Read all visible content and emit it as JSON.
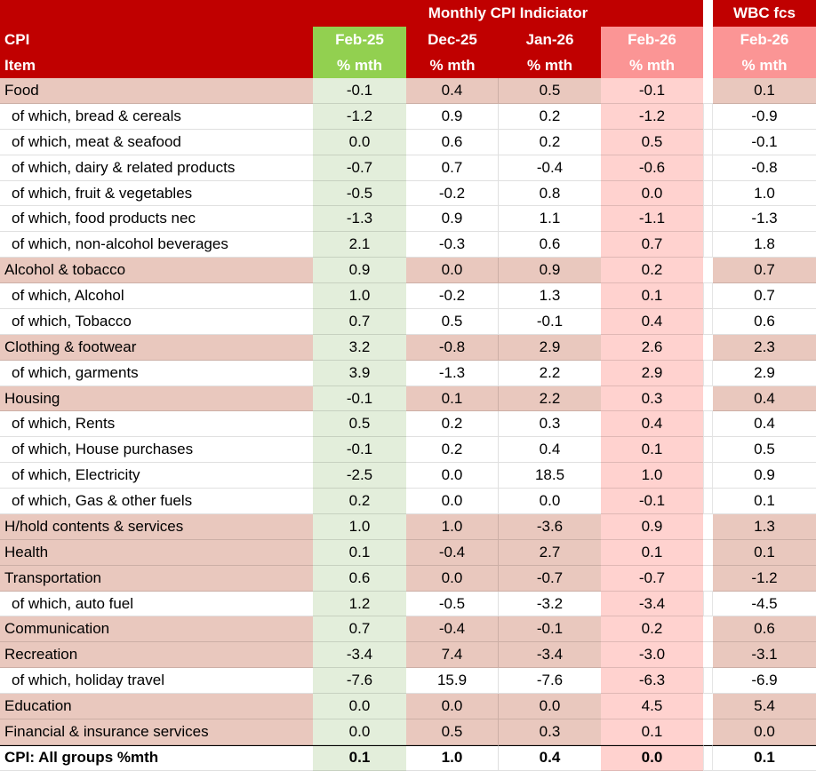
{
  "colors": {
    "header_red": "#C00000",
    "header_green": "#92D050",
    "header_pink": "#FB9595",
    "col_green": "#E3EEDB",
    "col_pink": "#FFD2CF",
    "category_row": "#E9C8BE",
    "grid_line": "#D9D9D9",
    "header_text": "#FFFFFF",
    "text": "#000000"
  },
  "chart_data": {
    "type": "table",
    "title": "Monthly CPI Indiciator",
    "forecast_title": "WBC fcs",
    "row_header": {
      "line1": "CPI",
      "line2": "Item"
    },
    "columns": [
      {
        "label": "Feb-25",
        "sub": "% mth",
        "theme": "green",
        "group": "Monthly CPI Indiciator"
      },
      {
        "label": "Dec-25",
        "sub": "% mth",
        "theme": "red",
        "group": "Monthly CPI Indiciator"
      },
      {
        "label": "Jan-26",
        "sub": "% mth",
        "theme": "red",
        "group": "Monthly CPI Indiciator"
      },
      {
        "label": "Feb-26",
        "sub": "% mth",
        "theme": "pink",
        "group": "Monthly CPI Indiciator"
      },
      {
        "label": "Feb-26",
        "sub": "% mth",
        "theme": "pink",
        "group": "WBC fcs"
      }
    ],
    "rows": [
      {
        "label": "Food",
        "type": "cat",
        "values": [
          -0.1,
          0.4,
          0.5,
          -0.1,
          0.1
        ]
      },
      {
        "label": "of which, bread & cereals",
        "type": "sub",
        "values": [
          -1.2,
          0.9,
          0.2,
          -1.2,
          -0.9
        ]
      },
      {
        "label": "of which, meat & seafood",
        "type": "sub",
        "values": [
          0.0,
          0.6,
          0.2,
          0.5,
          -0.1
        ]
      },
      {
        "label": "of which, dairy & related products",
        "type": "sub",
        "values": [
          -0.7,
          0.7,
          -0.4,
          -0.6,
          -0.8
        ]
      },
      {
        "label": "of which, fruit & vegetables",
        "type": "sub",
        "values": [
          -0.5,
          -0.2,
          0.8,
          0.0,
          1.0
        ]
      },
      {
        "label": "of which, food products nec",
        "type": "sub",
        "values": [
          -1.3,
          0.9,
          1.1,
          -1.1,
          -1.3
        ]
      },
      {
        "label": "of which, non-alcohol beverages",
        "type": "sub",
        "values": [
          2.1,
          -0.3,
          0.6,
          0.7,
          1.8
        ]
      },
      {
        "label": "Alcohol & tobacco",
        "type": "cat",
        "values": [
          0.9,
          0.0,
          0.9,
          0.2,
          0.7
        ]
      },
      {
        "label": "of which, Alcohol",
        "type": "sub",
        "values": [
          1.0,
          -0.2,
          1.3,
          0.1,
          0.7
        ]
      },
      {
        "label": "of which, Tobacco",
        "type": "sub",
        "values": [
          0.7,
          0.5,
          -0.1,
          0.4,
          0.6
        ]
      },
      {
        "label": "Clothing & footwear",
        "type": "cat",
        "values": [
          3.2,
          -0.8,
          2.9,
          2.6,
          2.3
        ]
      },
      {
        "label": "of which, garments",
        "type": "sub",
        "values": [
          3.9,
          -1.3,
          2.2,
          2.9,
          2.9
        ]
      },
      {
        "label": "Housing",
        "type": "cat",
        "values": [
          -0.1,
          0.1,
          2.2,
          0.3,
          0.4
        ]
      },
      {
        "label": "of which, Rents",
        "type": "sub",
        "values": [
          0.5,
          0.2,
          0.3,
          0.4,
          0.4
        ]
      },
      {
        "label": "of which, House purchases",
        "type": "sub",
        "values": [
          -0.1,
          0.2,
          0.4,
          0.1,
          0.5
        ]
      },
      {
        "label": "of which, Electricity",
        "type": "sub",
        "values": [
          -2.5,
          0.0,
          18.5,
          1.0,
          0.9
        ]
      },
      {
        "label": "of which, Gas & other fuels",
        "type": "sub",
        "values": [
          0.2,
          0.0,
          0.0,
          -0.1,
          0.1
        ]
      },
      {
        "label": "H/hold contents & services",
        "type": "cat",
        "values": [
          1.0,
          1.0,
          -3.6,
          0.9,
          1.3
        ]
      },
      {
        "label": "Health",
        "type": "cat",
        "values": [
          0.1,
          -0.4,
          2.7,
          0.1,
          0.1
        ]
      },
      {
        "label": "Transportation",
        "type": "cat",
        "values": [
          0.6,
          0.0,
          -0.7,
          -0.7,
          -1.2
        ]
      },
      {
        "label": "of which, auto fuel",
        "type": "sub",
        "values": [
          1.2,
          -0.5,
          -3.2,
          -3.4,
          -4.5
        ]
      },
      {
        "label": "Communication",
        "type": "cat",
        "values": [
          0.7,
          -0.4,
          -0.1,
          0.2,
          0.6
        ]
      },
      {
        "label": "Recreation",
        "type": "cat",
        "values": [
          -3.4,
          7.4,
          -3.4,
          -3.0,
          -3.1
        ]
      },
      {
        "label": "of which, holiday travel",
        "type": "sub",
        "values": [
          -7.6,
          15.9,
          -7.6,
          -6.3,
          -6.9
        ]
      },
      {
        "label": "Education",
        "type": "cat",
        "values": [
          0.0,
          0.0,
          0.0,
          4.5,
          5.4
        ]
      },
      {
        "label": "Financial & insurance services",
        "type": "cat",
        "values": [
          0.0,
          0.5,
          0.3,
          0.1,
          0.0
        ]
      },
      {
        "label": "CPI: All groups %mth",
        "type": "total",
        "values": [
          0.1,
          1.0,
          0.4,
          0.0,
          0.1
        ]
      }
    ]
  }
}
